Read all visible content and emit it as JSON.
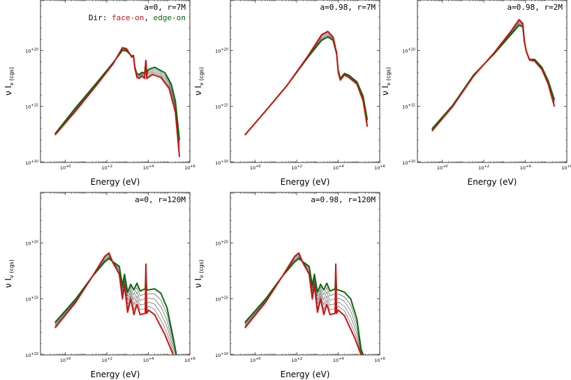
{
  "colors": {
    "face_on": "#d01010",
    "edge_on": "#0a6a0a",
    "middle": "#444444"
  },
  "chart_data": [
    {
      "type": "line",
      "id": "a0-r7M",
      "annotation": "a=0, r=7M",
      "legend": {
        "prefix": "Dir: ",
        "face_on": "face-on",
        "sep": ", ",
        "edge_on": "edge-on"
      },
      "xlabel": "Energy (eV)",
      "ylabel": "ν I_ν (cgs)",
      "x_scale": "log",
      "y_scale": "log",
      "xlim_exp": [
        -1.2,
        6.0
      ],
      "ylim_exp": [
        10,
        24.5
      ],
      "xticks": [
        "10^+0",
        "10^+2",
        "10^+4",
        "10^+6"
      ],
      "yticks": [
        "10^+10",
        "10^+15",
        "10^+20"
      ],
      "curves": {
        "face_on": [
          [
            -0.5,
            12.45
          ],
          [
            0.5,
            14.6
          ],
          [
            1.5,
            16.9
          ],
          [
            2.3,
            18.8
          ],
          [
            2.75,
            20.25
          ],
          [
            2.95,
            20.15
          ],
          [
            3.2,
            19.4
          ],
          [
            3.28,
            19.5
          ],
          [
            3.35,
            18.4
          ],
          [
            3.45,
            17.6
          ],
          [
            3.55,
            17.5
          ],
          [
            3.7,
            17.7
          ],
          [
            3.82,
            17.5
          ],
          [
            3.88,
            19.1
          ],
          [
            3.92,
            17.5
          ],
          [
            4.0,
            17.6
          ],
          [
            4.2,
            17.85
          ],
          [
            4.6,
            17.6
          ],
          [
            5.0,
            16.6
          ],
          [
            5.3,
            14.5
          ],
          [
            5.5,
            10.5
          ]
        ],
        "edge_on": [
          [
            -0.5,
            12.55
          ],
          [
            0.5,
            14.9
          ],
          [
            1.5,
            17.1
          ],
          [
            2.3,
            18.9
          ],
          [
            2.75,
            20.0
          ],
          [
            2.95,
            19.95
          ],
          [
            3.2,
            19.5
          ],
          [
            3.28,
            19.55
          ],
          [
            3.35,
            18.5
          ],
          [
            3.45,
            17.9
          ],
          [
            3.55,
            17.85
          ],
          [
            3.7,
            18.05
          ],
          [
            3.82,
            17.95
          ],
          [
            3.88,
            19.1
          ],
          [
            3.92,
            17.95
          ],
          [
            4.0,
            18.3
          ],
          [
            4.3,
            18.5
          ],
          [
            4.8,
            18.0
          ],
          [
            5.1,
            17.0
          ],
          [
            5.3,
            15.5
          ],
          [
            5.5,
            12.0
          ]
        ]
      }
    },
    {
      "type": "line",
      "id": "a098-r7M",
      "annotation": "a=0.98, r=7M",
      "xlabel": "Energy (eV)",
      "ylabel": "ν I_ν (cgs)",
      "x_scale": "log",
      "y_scale": "log",
      "xlim_exp": [
        -1.2,
        6.0
      ],
      "ylim_exp": [
        10,
        24.5
      ],
      "xticks": [
        "10^+0",
        "10^+2",
        "10^+4",
        "10^+6"
      ],
      "yticks": [
        "10^+10",
        "10^+15",
        "10^+20"
      ],
      "curves": {
        "face_on": [
          [
            -0.5,
            12.45
          ],
          [
            0.5,
            14.6
          ],
          [
            1.5,
            16.8
          ],
          [
            2.5,
            19.4
          ],
          [
            3.2,
            21.4
          ],
          [
            3.5,
            21.7
          ],
          [
            3.75,
            21.2
          ],
          [
            3.92,
            19.8
          ],
          [
            4.0,
            18.0
          ],
          [
            4.1,
            17.35
          ],
          [
            4.3,
            17.8
          ],
          [
            4.5,
            17.6
          ],
          [
            4.9,
            17.0
          ],
          [
            5.2,
            15.5
          ],
          [
            5.4,
            13.2
          ]
        ],
        "edge_on": [
          [
            -0.5,
            12.45
          ],
          [
            0.5,
            14.6
          ],
          [
            1.5,
            16.8
          ],
          [
            2.5,
            19.3
          ],
          [
            3.2,
            20.9
          ],
          [
            3.5,
            21.2
          ],
          [
            3.75,
            20.9
          ],
          [
            3.92,
            19.7
          ],
          [
            4.0,
            18.2
          ],
          [
            4.1,
            17.5
          ],
          [
            4.3,
            17.95
          ],
          [
            4.5,
            17.8
          ],
          [
            4.9,
            17.2
          ],
          [
            5.2,
            15.9
          ],
          [
            5.4,
            13.8
          ]
        ]
      }
    },
    {
      "type": "line",
      "id": "a098-r2M",
      "annotation": "a=0.98, r=2M",
      "xlabel": "Energy (eV)",
      "ylabel": "ν I_ν (cgs)",
      "x_scale": "log",
      "y_scale": "log",
      "xlim_exp": [
        -1.2,
        6.0
      ],
      "ylim_exp": [
        10,
        24.5
      ],
      "xticks": [
        "10^+0",
        "10^+2",
        "10^+4",
        "10^+6"
      ],
      "yticks": [
        "10^+10",
        "10^+15",
        "10^+20"
      ],
      "curves": {
        "face_on": [
          [
            -0.5,
            12.8
          ],
          [
            0.5,
            15.0
          ],
          [
            1.5,
            17.7
          ],
          [
            2.5,
            19.8
          ],
          [
            3.3,
            21.7
          ],
          [
            3.7,
            22.75
          ],
          [
            3.88,
            22.4
          ],
          [
            3.95,
            20.9
          ],
          [
            4.05,
            19.9
          ],
          [
            4.2,
            19.15
          ],
          [
            4.45,
            19.05
          ],
          [
            4.8,
            18.3
          ],
          [
            5.1,
            17.0
          ],
          [
            5.4,
            15.0
          ]
        ],
        "edge_on": [
          [
            -0.5,
            13.0
          ],
          [
            0.5,
            15.1
          ],
          [
            1.5,
            17.8
          ],
          [
            2.5,
            19.7
          ],
          [
            3.3,
            21.4
          ],
          [
            3.7,
            22.25
          ],
          [
            3.88,
            22.1
          ],
          [
            3.95,
            20.8
          ],
          [
            4.05,
            19.9
          ],
          [
            4.2,
            19.2
          ],
          [
            4.45,
            19.2
          ],
          [
            4.8,
            18.5
          ],
          [
            5.1,
            17.3
          ],
          [
            5.4,
            15.6
          ]
        ]
      }
    },
    {
      "type": "line",
      "id": "a0-r120M",
      "annotation": "a=0, r=120M",
      "xlabel": "Energy (eV)",
      "ylabel": "ν I_ν (cgs)",
      "x_scale": "log",
      "y_scale": "log",
      "xlim_exp": [
        -1.2,
        6.0
      ],
      "ylim_exp": [
        10,
        24.5
      ],
      "xticks": [
        "10^+0",
        "10^+2",
        "10^+4",
        "10^+6"
      ],
      "yticks": [
        "10^+10",
        "10^+15",
        "10^+20"
      ],
      "curves": {
        "face_on": [
          [
            -0.5,
            12.4
          ],
          [
            0.5,
            14.7
          ],
          [
            1.3,
            17.0
          ],
          [
            1.9,
            18.8
          ],
          [
            2.1,
            19.1
          ],
          [
            2.3,
            18.2
          ],
          [
            2.6,
            17.2
          ],
          [
            2.75,
            15.0
          ],
          [
            2.85,
            16.2
          ],
          [
            3.0,
            13.8
          ],
          [
            3.15,
            15.0
          ],
          [
            3.3,
            13.6
          ],
          [
            3.45,
            14.5
          ],
          [
            3.6,
            13.6
          ],
          [
            3.85,
            13.7
          ],
          [
            3.88,
            18.1
          ],
          [
            3.92,
            13.7
          ],
          [
            4.0,
            14.0
          ],
          [
            4.3,
            13.6
          ],
          [
            4.8,
            11.8
          ],
          [
            5.2,
            10.0
          ]
        ],
        "edge_on": [
          [
            -0.5,
            12.9
          ],
          [
            0.5,
            15.0
          ],
          [
            1.3,
            17.0
          ],
          [
            1.9,
            18.3
          ],
          [
            2.1,
            18.6
          ],
          [
            2.3,
            18.3
          ],
          [
            2.6,
            17.9
          ],
          [
            2.75,
            16.2
          ],
          [
            2.85,
            17.2
          ],
          [
            3.0,
            15.6
          ],
          [
            3.15,
            16.3
          ],
          [
            3.3,
            15.8
          ],
          [
            3.45,
            16.4
          ],
          [
            3.6,
            15.7
          ],
          [
            3.85,
            15.9
          ],
          [
            3.88,
            17.5
          ],
          [
            3.92,
            15.8
          ],
          [
            4.0,
            15.8
          ],
          [
            4.3,
            15.9
          ],
          [
            4.6,
            15.5
          ],
          [
            4.9,
            14.2
          ],
          [
            5.2,
            11.5
          ],
          [
            5.35,
            10.0
          ]
        ]
      }
    },
    {
      "type": "line",
      "id": "a098-r120M",
      "annotation": "a=0.98, r=120M",
      "xlabel": "Energy (eV)",
      "ylabel": "ν I_ν (cgs)",
      "x_scale": "log",
      "y_scale": "log",
      "xlim_exp": [
        -1.2,
        6.0
      ],
      "ylim_exp": [
        10,
        24.5
      ],
      "xticks": [
        "10^+0",
        "10^+2",
        "10^+4",
        "10^+6"
      ],
      "yticks": [
        "10^+10",
        "10^+15",
        "10^+20"
      ],
      "curves": {
        "face_on": [
          [
            -0.5,
            12.4
          ],
          [
            0.5,
            14.7
          ],
          [
            1.3,
            17.0
          ],
          [
            1.9,
            18.8
          ],
          [
            2.1,
            19.1
          ],
          [
            2.3,
            18.2
          ],
          [
            2.6,
            17.2
          ],
          [
            2.75,
            15.0
          ],
          [
            2.85,
            16.2
          ],
          [
            3.0,
            13.8
          ],
          [
            3.15,
            15.0
          ],
          [
            3.3,
            13.6
          ],
          [
            3.45,
            14.5
          ],
          [
            3.6,
            13.6
          ],
          [
            3.85,
            13.7
          ],
          [
            3.88,
            18.1
          ],
          [
            3.92,
            13.7
          ],
          [
            4.0,
            14.0
          ],
          [
            4.3,
            13.5
          ],
          [
            4.8,
            11.5
          ],
          [
            5.1,
            10.0
          ]
        ],
        "edge_on": [
          [
            -0.5,
            12.9
          ],
          [
            0.5,
            15.0
          ],
          [
            1.3,
            17.0
          ],
          [
            1.9,
            18.3
          ],
          [
            2.1,
            18.6
          ],
          [
            2.3,
            18.3
          ],
          [
            2.6,
            17.9
          ],
          [
            2.75,
            16.2
          ],
          [
            2.85,
            17.2
          ],
          [
            3.0,
            15.6
          ],
          [
            3.15,
            16.3
          ],
          [
            3.3,
            15.8
          ],
          [
            3.45,
            16.4
          ],
          [
            3.6,
            15.7
          ],
          [
            3.85,
            15.9
          ],
          [
            3.88,
            17.5
          ],
          [
            3.92,
            15.8
          ],
          [
            4.0,
            15.8
          ],
          [
            4.3,
            15.6
          ],
          [
            4.6,
            15.0
          ],
          [
            4.9,
            13.2
          ],
          [
            5.1,
            10.5
          ],
          [
            5.2,
            10.0
          ]
        ]
      }
    }
  ]
}
